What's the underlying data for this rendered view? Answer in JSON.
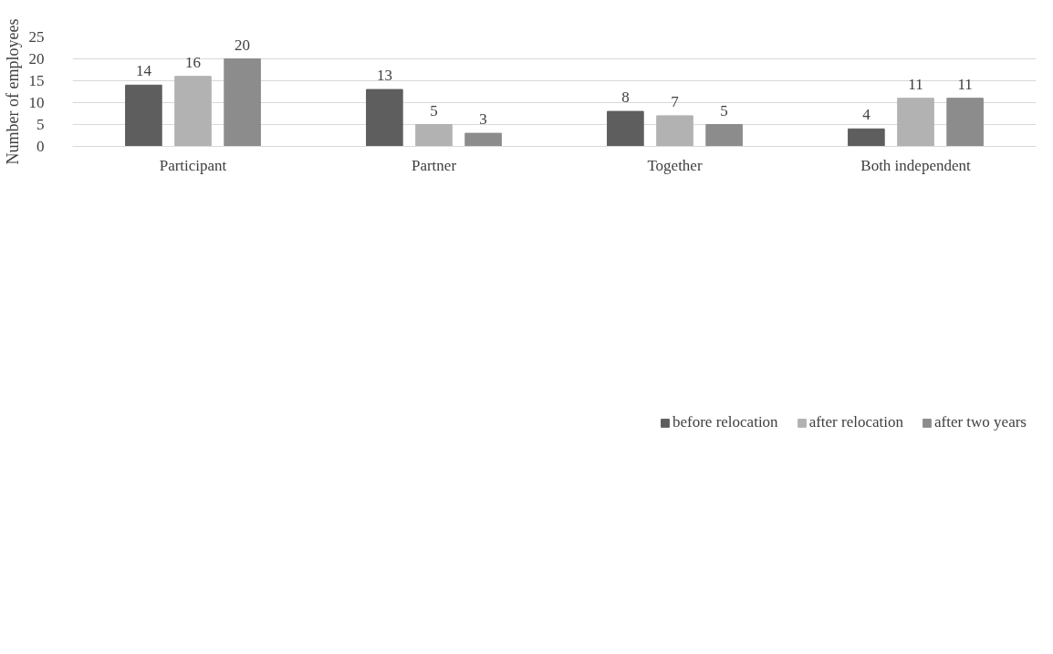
{
  "chart_data": {
    "type": "bar",
    "ylabel": "Number of employees",
    "categories": [
      "Participant",
      "Partner",
      "Together",
      "Both independent"
    ],
    "series": [
      {
        "name": "before relocation",
        "color": "#5e5e5e",
        "values": [
          14,
          13,
          8,
          4
        ]
      },
      {
        "name": "after relocation",
        "color": "#b2b2b2",
        "values": [
          16,
          5,
          7,
          11
        ]
      },
      {
        "name": "after two years",
        "color": "#8c8c8c",
        "values": [
          20,
          3,
          5,
          11
        ]
      }
    ],
    "ylim": [
      0,
      25
    ],
    "yticks": [
      0,
      5,
      10,
      15,
      20,
      25
    ],
    "grid": "y",
    "legend": "bottom",
    "data_labels": true
  }
}
